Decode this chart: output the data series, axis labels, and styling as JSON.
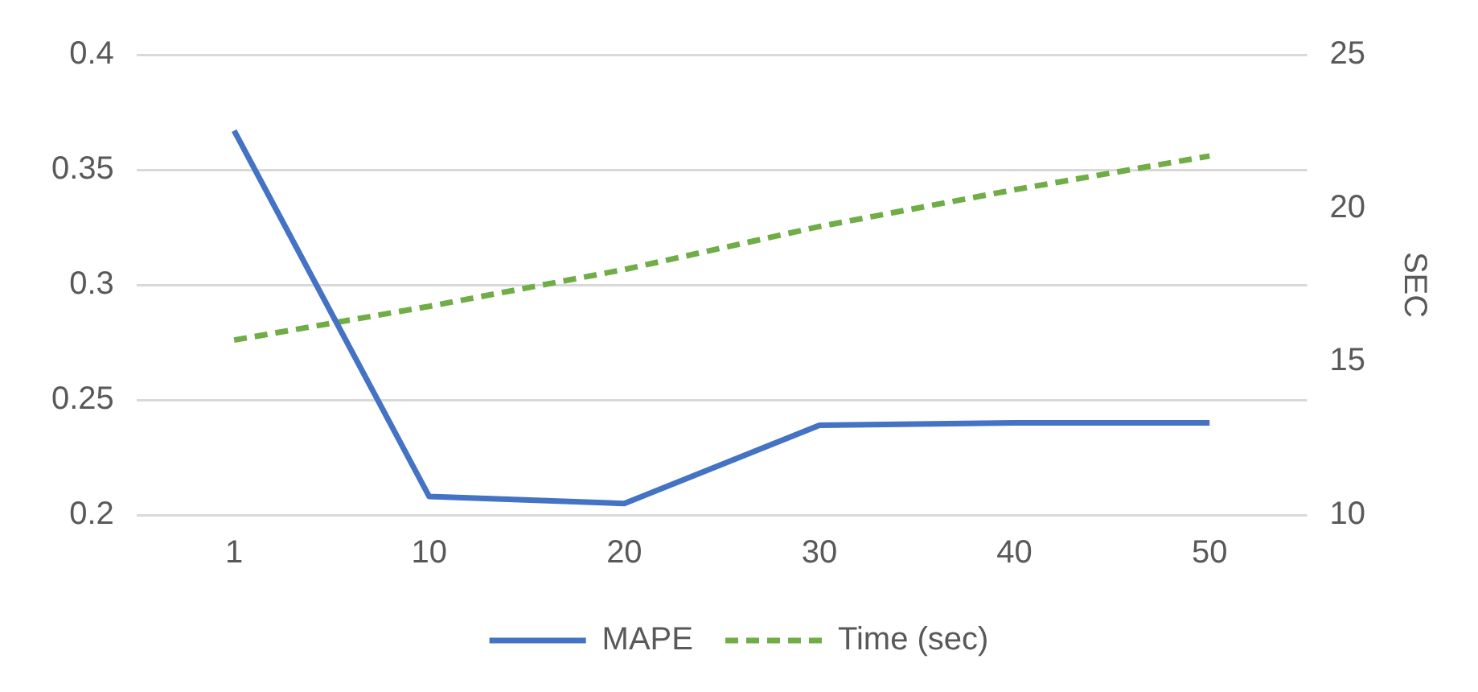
{
  "chart_data": {
    "type": "line",
    "categories": [
      "1",
      "10",
      "20",
      "30",
      "40",
      "50"
    ],
    "series": [
      {
        "name": "MAPE",
        "color": "#4472c4",
        "values": [
          0.367,
          0.208,
          0.205,
          0.239,
          0.24,
          0.24
        ]
      },
      {
        "name": "Time (sec)",
        "color": "#70ad47",
        "values": [
          15.7,
          16.8,
          18.0,
          19.4,
          20.6,
          21.7
        ],
        "axis": "y2",
        "line_style": "dashed"
      }
    ],
    "ylim": [
      0.2,
      0.4
    ],
    "yticks": [
      0.2,
      0.25,
      0.3,
      0.35,
      0.4
    ],
    "y2lim": [
      10,
      25
    ],
    "y2ticks": [
      10,
      15,
      20,
      25
    ],
    "y2label": "SEC",
    "grid": "y",
    "legend": "bottom",
    "marker": "none"
  }
}
